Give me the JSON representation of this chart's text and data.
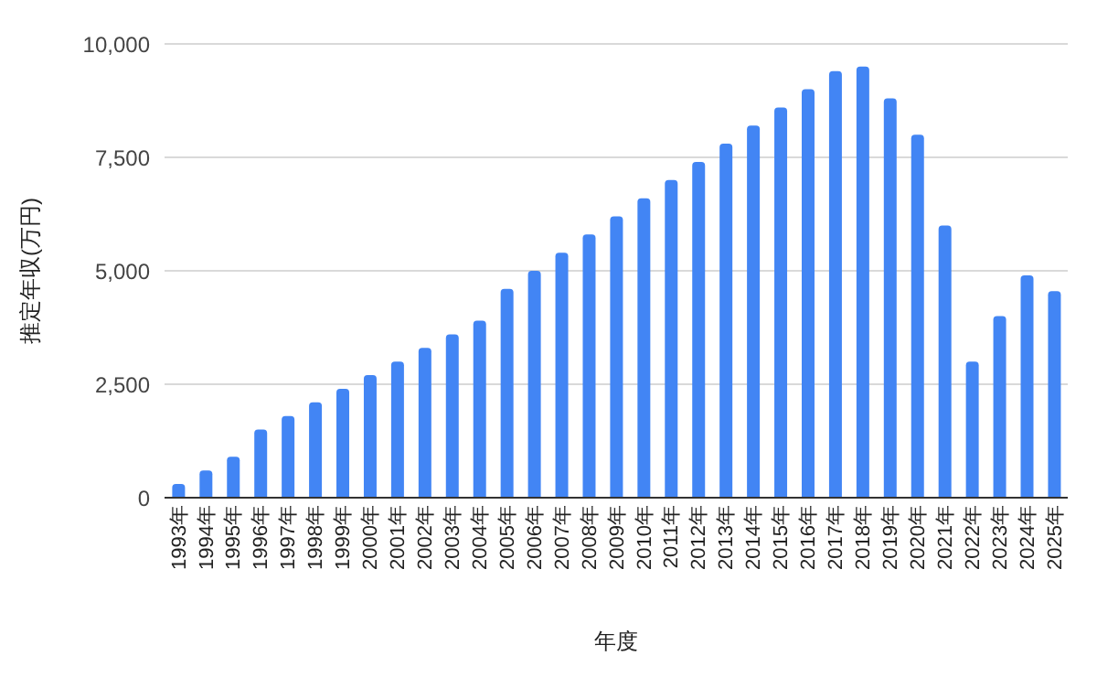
{
  "chart_data": {
    "type": "bar",
    "xlabel": "年度",
    "ylabel": "推定年収(万円)",
    "categories": [
      "1993年",
      "1994年",
      "1995年",
      "1996年",
      "1997年",
      "1998年",
      "1999年",
      "2000年",
      "2001年",
      "2002年",
      "2003年",
      "2004年",
      "2005年",
      "2006年",
      "2007年",
      "2008年",
      "2009年",
      "2010年",
      "2011年",
      "2012年",
      "2013年",
      "2014年",
      "2015年",
      "2016年",
      "2017年",
      "2018年",
      "2019年",
      "2020年",
      "2021年",
      "2022年",
      "2023年",
      "2024年",
      "2025年"
    ],
    "values": [
      300,
      600,
      900,
      1500,
      1800,
      2100,
      2400,
      2700,
      3000,
      3300,
      3600,
      3900,
      4600,
      5000,
      5400,
      5800,
      6200,
      6600,
      7000,
      7400,
      7800,
      8200,
      8600,
      9000,
      9400,
      9500,
      8800,
      8000,
      6000,
      3000,
      4000,
      4900,
      4550
    ],
    "color": "#4285f4",
    "ylim": [
      0,
      10000
    ],
    "yticks": [
      {
        "value": 0,
        "label": "0"
      },
      {
        "value": 2500,
        "label": "2,500"
      },
      {
        "value": 5000,
        "label": "5,000"
      },
      {
        "value": 7500,
        "label": "7,500"
      },
      {
        "value": 10000,
        "label": "10,000"
      }
    ],
    "grid": "y",
    "legend": false
  }
}
